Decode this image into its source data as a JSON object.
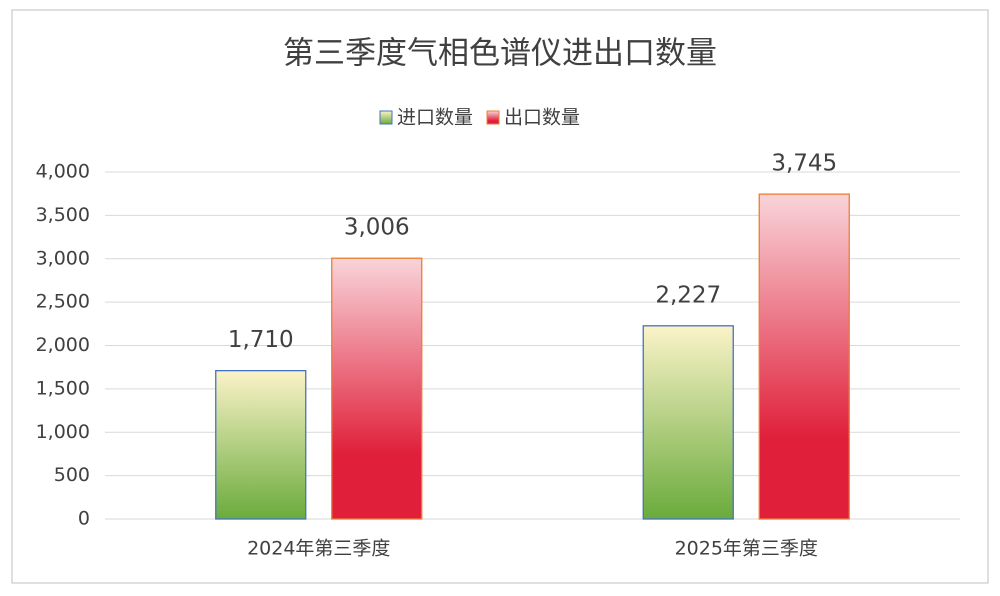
{
  "chart_data": {
    "type": "bar",
    "title": "第三季度气相色谱仪进出口数量",
    "categories": [
      "2024年第三季度",
      "2025年第三季度"
    ],
    "series": [
      {
        "name": "进口数量",
        "color": "#6aab3c",
        "values": [
          1710,
          2227
        ],
        "value_labels": [
          "1,710",
          "2,227"
        ]
      },
      {
        "name": "出口数量",
        "color": "#e0203a",
        "values": [
          3006,
          3745
        ],
        "value_labels": [
          "3,006",
          "3,745"
        ]
      }
    ],
    "ylim": [
      0,
      4000
    ],
    "yticks": [
      0,
      500,
      {
        "value": 1000,
        "label": "1,000"
      },
      {
        "value": 1500,
        "label": "1,500"
      },
      {
        "value": 2000,
        "label": "2,000"
      },
      {
        "value": 2500,
        "label": "2,500"
      },
      {
        "value": 3000,
        "label": "3,000"
      },
      {
        "value": 3500,
        "label": "3,500"
      },
      {
        "value": 4000,
        "label": "4,000"
      }
    ],
    "grid": true,
    "legend": "top"
  }
}
